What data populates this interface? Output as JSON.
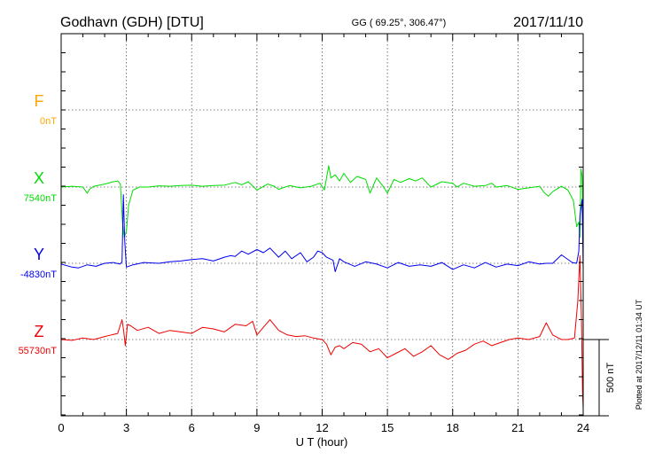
{
  "header": {
    "station": "Godhavn (GDH)  [DTU]",
    "coords": "GG ( 69.25°, 306.47°)",
    "date": "2017/11/10"
  },
  "footer": {
    "xlabel": "U T (hour)",
    "plotted": "Plotted at 2017/12/11 01:34 UT",
    "scale": "500 nT"
  },
  "chart_data": {
    "type": "line",
    "xlabel": "U T (hour)",
    "xlim": [
      0,
      24
    ],
    "xticks": [
      0,
      3,
      6,
      9,
      12,
      15,
      18,
      21,
      24
    ],
    "grid": true,
    "scale_bar_nT": 500,
    "series": [
      {
        "name": "F",
        "baseline_label": "0nT",
        "color": "#FFA500",
        "x": [],
        "y": []
      },
      {
        "name": "X",
        "baseline_label": "7540nT",
        "color": "#00DD00",
        "x": [
          0,
          0.5,
          1.0,
          1.2,
          1.3,
          1.5,
          2.0,
          2.4,
          2.6,
          2.72,
          2.82,
          2.9,
          3.0,
          3.1,
          3.3,
          3.6,
          4.0,
          4.5,
          5.0,
          5.5,
          6.0,
          6.5,
          7.0,
          7.5,
          8.0,
          8.3,
          8.6,
          9.0,
          9.5,
          9.8,
          10.0,
          10.5,
          11.0,
          11.5,
          11.9,
          12.1,
          12.3,
          12.4,
          12.6,
          12.8,
          13.0,
          13.3,
          13.6,
          14.0,
          14.2,
          14.5,
          14.8,
          15.0,
          15.3,
          15.6,
          16.0,
          16.3,
          16.6,
          17.0,
          17.5,
          18.0,
          18.2,
          18.5,
          19.0,
          19.5,
          19.8,
          20.0,
          20.5,
          21.0,
          21.5,
          22.0,
          22.2,
          22.4,
          22.6,
          23.0,
          23.3,
          23.55,
          23.7,
          23.8,
          23.85,
          23.9,
          23.95,
          24.0
        ],
        "y": [
          0,
          5,
          0,
          -40,
          -15,
          5,
          20,
          35,
          40,
          20,
          -230,
          -330,
          -290,
          -120,
          -20,
          0,
          0,
          8,
          5,
          10,
          12,
          5,
          10,
          12,
          30,
          15,
          35,
          -20,
          20,
          5,
          -15,
          10,
          -5,
          5,
          25,
          -20,
          140,
          60,
          80,
          40,
          90,
          30,
          70,
          50,
          -40,
          60,
          5,
          -40,
          50,
          30,
          55,
          40,
          60,
          0,
          35,
          25,
          0,
          25,
          5,
          10,
          25,
          0,
          10,
          -15,
          -5,
          5,
          -35,
          -60,
          -30,
          5,
          -20,
          -90,
          -260,
          -230,
          -330,
          120,
          70,
          -250
        ]
      },
      {
        "name": "Y",
        "baseline_label": "-4830nT",
        "color": "#0000EE",
        "x": [
          0,
          0.5,
          0.8,
          1.2,
          1.6,
          2.0,
          2.4,
          2.7,
          2.8,
          2.86,
          2.92,
          3.0,
          3.3,
          3.8,
          4.5,
          5.0,
          5.5,
          6.0,
          6.5,
          7.0,
          7.5,
          7.8,
          8.0,
          8.3,
          8.6,
          9.0,
          9.3,
          9.6,
          10.0,
          10.3,
          10.6,
          11.0,
          11.3,
          11.6,
          11.8,
          12.0,
          12.2,
          12.5,
          12.6,
          12.8,
          13.0,
          13.5,
          14.0,
          14.5,
          15.0,
          15.5,
          16.0,
          16.5,
          17.0,
          17.5,
          18.0,
          18.5,
          19.0,
          19.5,
          20.0,
          20.5,
          21.0,
          21.5,
          22.0,
          22.3,
          22.6,
          23.0,
          23.5,
          23.7,
          23.8,
          23.85,
          23.9,
          23.95,
          24.0
        ],
        "y": [
          -5,
          -25,
          -30,
          -10,
          -20,
          0,
          5,
          -5,
          10,
          450,
          150,
          -25,
          -10,
          5,
          0,
          10,
          15,
          25,
          30,
          15,
          40,
          50,
          45,
          80,
          60,
          90,
          70,
          100,
          40,
          80,
          30,
          70,
          10,
          40,
          80,
          70,
          40,
          20,
          -55,
          30,
          10,
          -20,
          10,
          -5,
          -30,
          5,
          -20,
          -10,
          -20,
          5,
          -40,
          -10,
          -30,
          5,
          -25,
          -5,
          -15,
          10,
          -5,
          0,
          0,
          55,
          5,
          0,
          80,
          310,
          360,
          420,
          -30
        ]
      },
      {
        "name": "Z",
        "baseline_label": "55730nT",
        "color": "#EE0000",
        "x": [
          0,
          0.5,
          1.0,
          1.5,
          2.0,
          2.3,
          2.6,
          2.8,
          2.88,
          2.95,
          3.05,
          3.2,
          3.5,
          4.0,
          4.5,
          5.0,
          5.5,
          6.0,
          6.5,
          7.0,
          7.5,
          8.0,
          8.5,
          8.8,
          9.0,
          9.3,
          9.6,
          10.0,
          10.4,
          10.8,
          11.2,
          11.6,
          12.0,
          12.2,
          12.4,
          12.6,
          12.8,
          13.0,
          13.4,
          13.8,
          14.2,
          14.6,
          15.0,
          15.4,
          15.8,
          16.2,
          16.6,
          17.0,
          17.4,
          17.8,
          18.2,
          18.6,
          19.0,
          19.4,
          19.8,
          20.2,
          20.6,
          21.0,
          21.5,
          22.0,
          22.3,
          22.6,
          23.0,
          23.3,
          23.6,
          23.75,
          23.85,
          23.92,
          23.97,
          24.0
        ],
        "y": [
          0,
          -5,
          10,
          0,
          20,
          30,
          40,
          130,
          50,
          -40,
          100,
          90,
          60,
          80,
          40,
          60,
          50,
          40,
          80,
          70,
          50,
          100,
          90,
          120,
          30,
          80,
          130,
          60,
          30,
          20,
          25,
          10,
          0,
          -30,
          -100,
          -50,
          -40,
          -60,
          -20,
          -30,
          -80,
          -60,
          -120,
          -90,
          -60,
          -110,
          -80,
          -40,
          -100,
          -130,
          -90,
          -70,
          -30,
          -10,
          -40,
          -20,
          0,
          10,
          0,
          20,
          110,
          30,
          0,
          0,
          10,
          250,
          550,
          150,
          -350,
          -450
        ]
      }
    ]
  }
}
